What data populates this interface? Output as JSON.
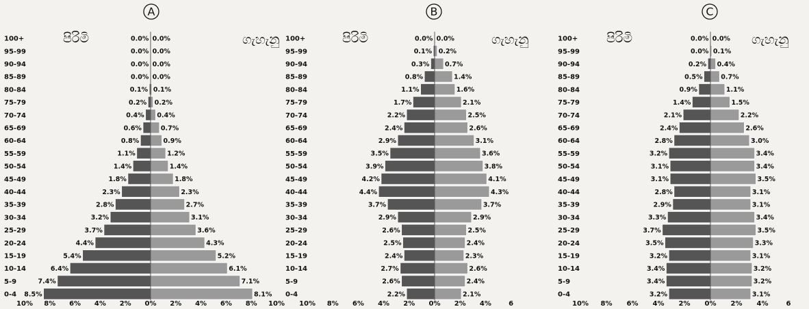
{
  "chart_data": [
    {
      "type": "bar",
      "panel_label": "A",
      "male_label": "පිරිමි",
      "female_label": "ගැහැනු",
      "categories": [
        "100+",
        "95-99",
        "90-94",
        "85-89",
        "80-84",
        "75-79",
        "70-74",
        "65-69",
        "60-64",
        "55-59",
        "50-54",
        "45-49",
        "40-44",
        "35-39",
        "30-34",
        "25-29",
        "20-24",
        "15-19",
        "10-14",
        "5-9",
        "0-4"
      ],
      "series": [
        {
          "values": [
            0.0,
            0.0,
            0.0,
            0.0,
            0.1,
            0.2,
            0.4,
            0.6,
            0.8,
            1.1,
            1.4,
            1.8,
            2.3,
            2.8,
            3.2,
            3.7,
            4.4,
            5.4,
            6.4,
            7.4,
            8.5
          ]
        },
        {
          "values": [
            0.0,
            0.0,
            0.0,
            0.0,
            0.1,
            0.2,
            0.4,
            0.7,
            0.9,
            1.2,
            1.4,
            1.8,
            2.3,
            2.7,
            3.1,
            3.6,
            4.3,
            5.2,
            6.1,
            7.1,
            8.1
          ]
        }
      ],
      "value_labels_male": [
        "0.0%",
        "0.0%",
        "0.0%",
        "0.0%",
        "0.1%",
        "0.2%",
        "0.4%",
        "0.6%",
        "0.8%",
        "1.1%",
        "1.4%",
        "1.8%",
        "2.3%",
        "2.8%",
        "3.2%",
        "3.7%",
        "4.4%",
        "5.4%",
        "6.4%",
        "7.4%",
        "8.5%"
      ],
      "value_labels_female": [
        "0.0%",
        "0.0%",
        "0.0%",
        "0.0%",
        "0.1%",
        "0.2%",
        "0.4%",
        "0.7%",
        "0.9%",
        "1.2%",
        "1.4%",
        "1.8%",
        "2.3%",
        "2.7%",
        "3.1%",
        "3.6%",
        "4.3%",
        "5.2%",
        "6.1%",
        "7.1%",
        "8.1%"
      ],
      "xlim": [
        -10,
        10
      ],
      "x_ticks": [
        "10%",
        "8%",
        "6%",
        "4%",
        "2%",
        "0%",
        "2%",
        "4%",
        "6%",
        "8%",
        "10%"
      ],
      "x_tick_values": [
        -10,
        -8,
        -6,
        -4,
        -2,
        0,
        2,
        4,
        6,
        8,
        10
      ],
      "grid": false
    },
    {
      "type": "bar",
      "panel_label": "B",
      "male_label": "පිරිමි",
      "female_label": "ගැහැනු",
      "categories": [
        "100+",
        "95-99",
        "90-94",
        "85-89",
        "80-84",
        "75-79",
        "70-74",
        "65-69",
        "60-64",
        "55-59",
        "50-54",
        "45-49",
        "40-44",
        "35-39",
        "30-34",
        "25-29",
        "20-24",
        "15-19",
        "10-14",
        "5-9",
        "0-4"
      ],
      "series": [
        {
          "values": [
            0.0,
            0.1,
            0.3,
            0.8,
            1.1,
            1.7,
            2.2,
            2.4,
            2.9,
            3.5,
            3.9,
            4.2,
            4.4,
            3.7,
            2.9,
            2.6,
            2.5,
            2.4,
            2.7,
            2.6,
            2.2
          ]
        },
        {
          "values": [
            0.0,
            0.2,
            0.7,
            1.4,
            1.6,
            2.1,
            2.5,
            2.6,
            3.1,
            3.6,
            3.8,
            4.1,
            4.3,
            3.7,
            2.9,
            2.5,
            2.4,
            2.3,
            2.6,
            2.4,
            2.1
          ]
        }
      ],
      "value_labels_male": [
        "0.0%",
        "0.1%",
        "0.3%",
        "0.8%",
        "1.1%",
        "1.7%",
        "2.2%",
        "2.4%",
        "2.9%",
        "3.5%",
        "3.9%",
        "4.2%",
        "4.4%",
        "3.7%",
        "2.9%",
        "2.6%",
        "2.5%",
        "2.4%",
        "2.7%",
        "2.6%",
        "2.2%"
      ],
      "value_labels_female": [
        "0.0%",
        "0.2%",
        "0.7%",
        "1.4%",
        "1.6%",
        "2.1%",
        "2.5%",
        "2.6%",
        "3.1%",
        "3.6%",
        "3.8%",
        "4.1%",
        "4.3%",
        "3.7%",
        "2.9%",
        "2.5%",
        "2.4%",
        "2.3%",
        "2.6%",
        "2.4%",
        "2.1%"
      ],
      "xlim": [
        -10,
        6
      ],
      "x_ticks": [
        "10%",
        "8%",
        "6%",
        "4%",
        "2%",
        "0%",
        "2%",
        "4%",
        "6"
      ],
      "x_tick_values": [
        -10,
        -8,
        -6,
        -4,
        -2,
        0,
        2,
        4,
        6
      ],
      "grid": false
    },
    {
      "type": "bar",
      "panel_label": "C",
      "male_label": "පිරිමි",
      "female_label": "ගැහැනු",
      "categories": [
        "100+",
        "95-99",
        "90-94",
        "85-89",
        "80-84",
        "75-79",
        "70-74",
        "65-69",
        "60-64",
        "55-59",
        "50-54",
        "45-49",
        "40-44",
        "35-39",
        "30-34",
        "25-29",
        "20-24",
        "15-19",
        "10-14",
        "5-9",
        "0-4"
      ],
      "series": [
        {
          "values": [
            0.0,
            0.0,
            0.2,
            0.5,
            0.9,
            1.4,
            2.1,
            2.4,
            2.8,
            3.2,
            3.1,
            3.1,
            2.8,
            2.9,
            3.3,
            3.7,
            3.5,
            3.2,
            3.4,
            3.4,
            3.2
          ]
        },
        {
          "values": [
            0.0,
            0.1,
            0.4,
            0.7,
            1.1,
            1.5,
            2.2,
            2.6,
            3.0,
            3.4,
            3.4,
            3.5,
            3.1,
            3.1,
            3.4,
            3.5,
            3.3,
            3.1,
            3.2,
            3.2,
            3.1
          ]
        }
      ],
      "value_labels_male": [
        "0.0%",
        "0.0%",
        "0.2%",
        "0.5%",
        "0.9%",
        "1.4%",
        "2.1%",
        "2.4%",
        "2.8%",
        "3.2%",
        "3.1%",
        "3.1%",
        "2.8%",
        "2.9%",
        "3.3%",
        "3.7%",
        "3.5%",
        "3.2%",
        "3.4%",
        "3.4%",
        "3.2%"
      ],
      "value_labels_female": [
        "0.0%",
        "0.1%",
        "0.4%",
        "0.7%",
        "1.1%",
        "1.5%",
        "2.2%",
        "2.6%",
        "3.0%",
        "3.4%",
        "3.4%",
        "3.5%",
        "3.1%",
        "3.1%",
        "3.4%",
        "3.5%",
        "3.3%",
        "3.1%",
        "3.2%",
        "3.2%",
        "3.1%"
      ],
      "xlim": [
        -10,
        6
      ],
      "x_ticks": [
        "10%",
        "8%",
        "6%",
        "4%",
        "2%",
        "0%",
        "2%",
        "4%",
        "6"
      ],
      "x_tick_values": [
        -10,
        -8,
        -6,
        -4,
        -2,
        0,
        2,
        4,
        6
      ],
      "grid": false
    }
  ],
  "colors": {
    "male_bar": "#555555",
    "female_bar": "#9a9a9a",
    "bar_edge": "#ffffff",
    "text": "#111111",
    "background": "#f4f2ee"
  }
}
